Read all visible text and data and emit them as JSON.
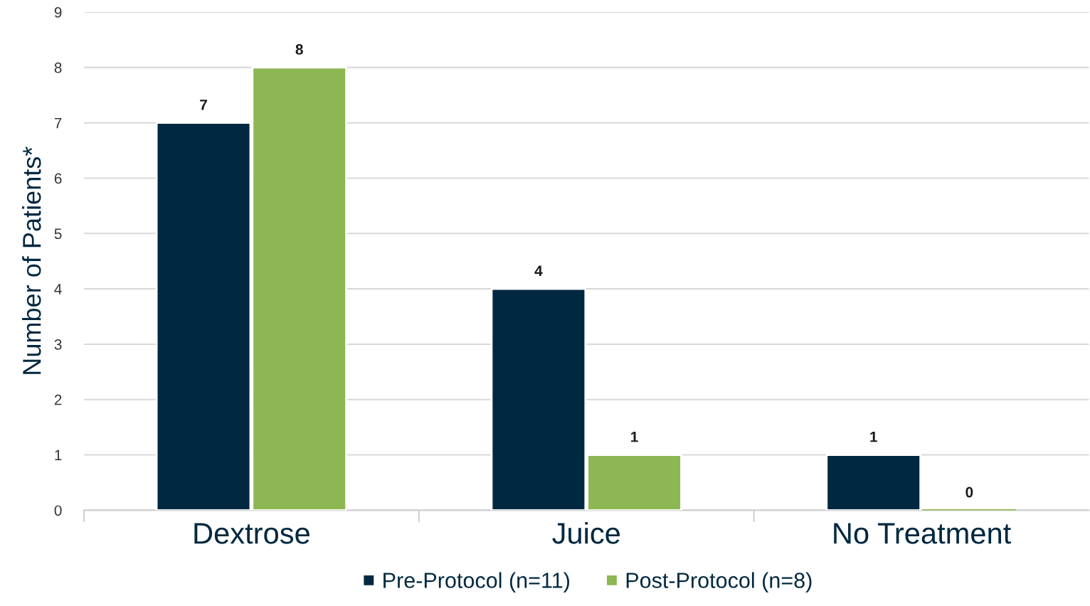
{
  "chart_data": {
    "type": "bar",
    "ylabel": "Number of Patients*",
    "categories": [
      "Dextrose",
      "Juice",
      "No Treatment"
    ],
    "series": [
      {
        "name": "Pre-Protocol (n=11)",
        "color": "#002840",
        "values": [
          7,
          4,
          1
        ]
      },
      {
        "name": "Post-Protocol (n=8)",
        "color": "#8db752",
        "values": [
          8,
          1,
          0
        ]
      }
    ],
    "ylim": [
      0,
      9
    ],
    "yticks": [
      0,
      1,
      2,
      3,
      4,
      5,
      6,
      7,
      8,
      9
    ],
    "grid": "y",
    "legend": "bottom",
    "data_labels": true
  }
}
